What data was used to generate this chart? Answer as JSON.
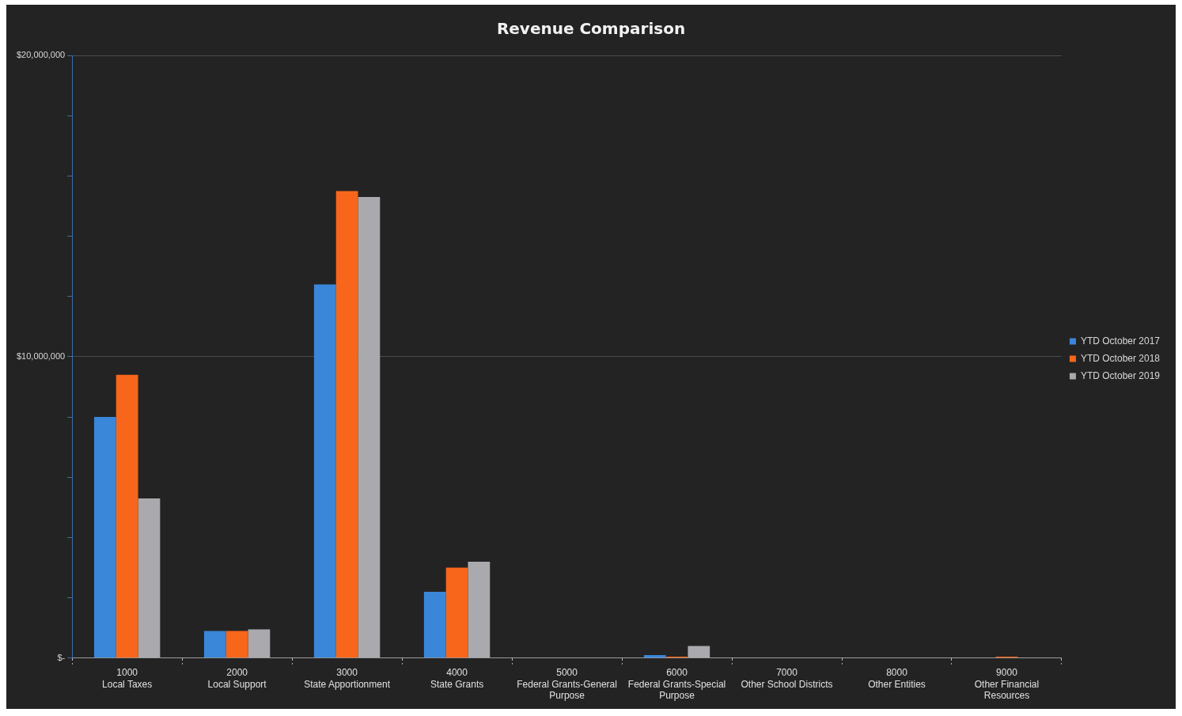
{
  "chart_data": {
    "type": "bar",
    "title": "Revenue Comparison",
    "categories": [
      "1000\nLocal Taxes",
      "2000\nLocal Support",
      "3000\nState Apportionment",
      "4000\nState Grants",
      "5000\nFederal Grants-General\nPurpose",
      "6000\nFederal Grants-Special\nPurpose",
      "7000\nOther School Districts",
      "8000\nOther Entities",
      "9000\nOther Financial\nResources"
    ],
    "series": [
      {
        "name": "YTD October 2017",
        "color": "#3a86d8",
        "values": [
          8000000,
          900000,
          12400000,
          2200000,
          0,
          100000,
          0,
          0,
          0
        ]
      },
      {
        "name": "YTD October 2018",
        "color": "#f7661a",
        "values": [
          9400000,
          900000,
          15500000,
          3000000,
          0,
          50000,
          0,
          0,
          50000
        ]
      },
      {
        "name": "YTD October 2019",
        "color": "#a9a9ae",
        "values": [
          5300000,
          950000,
          15300000,
          3200000,
          0,
          400000,
          0,
          0,
          20000
        ]
      }
    ],
    "ylim": [
      0,
      20000000
    ],
    "yticks": [
      {
        "value": 0,
        "label": "$-"
      },
      {
        "value": 2000000,
        "label": null
      },
      {
        "value": 4000000,
        "label": null
      },
      {
        "value": 6000000,
        "label": null
      },
      {
        "value": 8000000,
        "label": null
      },
      {
        "value": 10000000,
        "label": "$10,000,000"
      },
      {
        "value": 12000000,
        "label": null
      },
      {
        "value": 14000000,
        "label": null
      },
      {
        "value": 16000000,
        "label": null
      },
      {
        "value": 18000000,
        "label": null
      },
      {
        "value": 20000000,
        "label": "$20,000,000"
      }
    ],
    "grid": "y",
    "legend": "right"
  }
}
